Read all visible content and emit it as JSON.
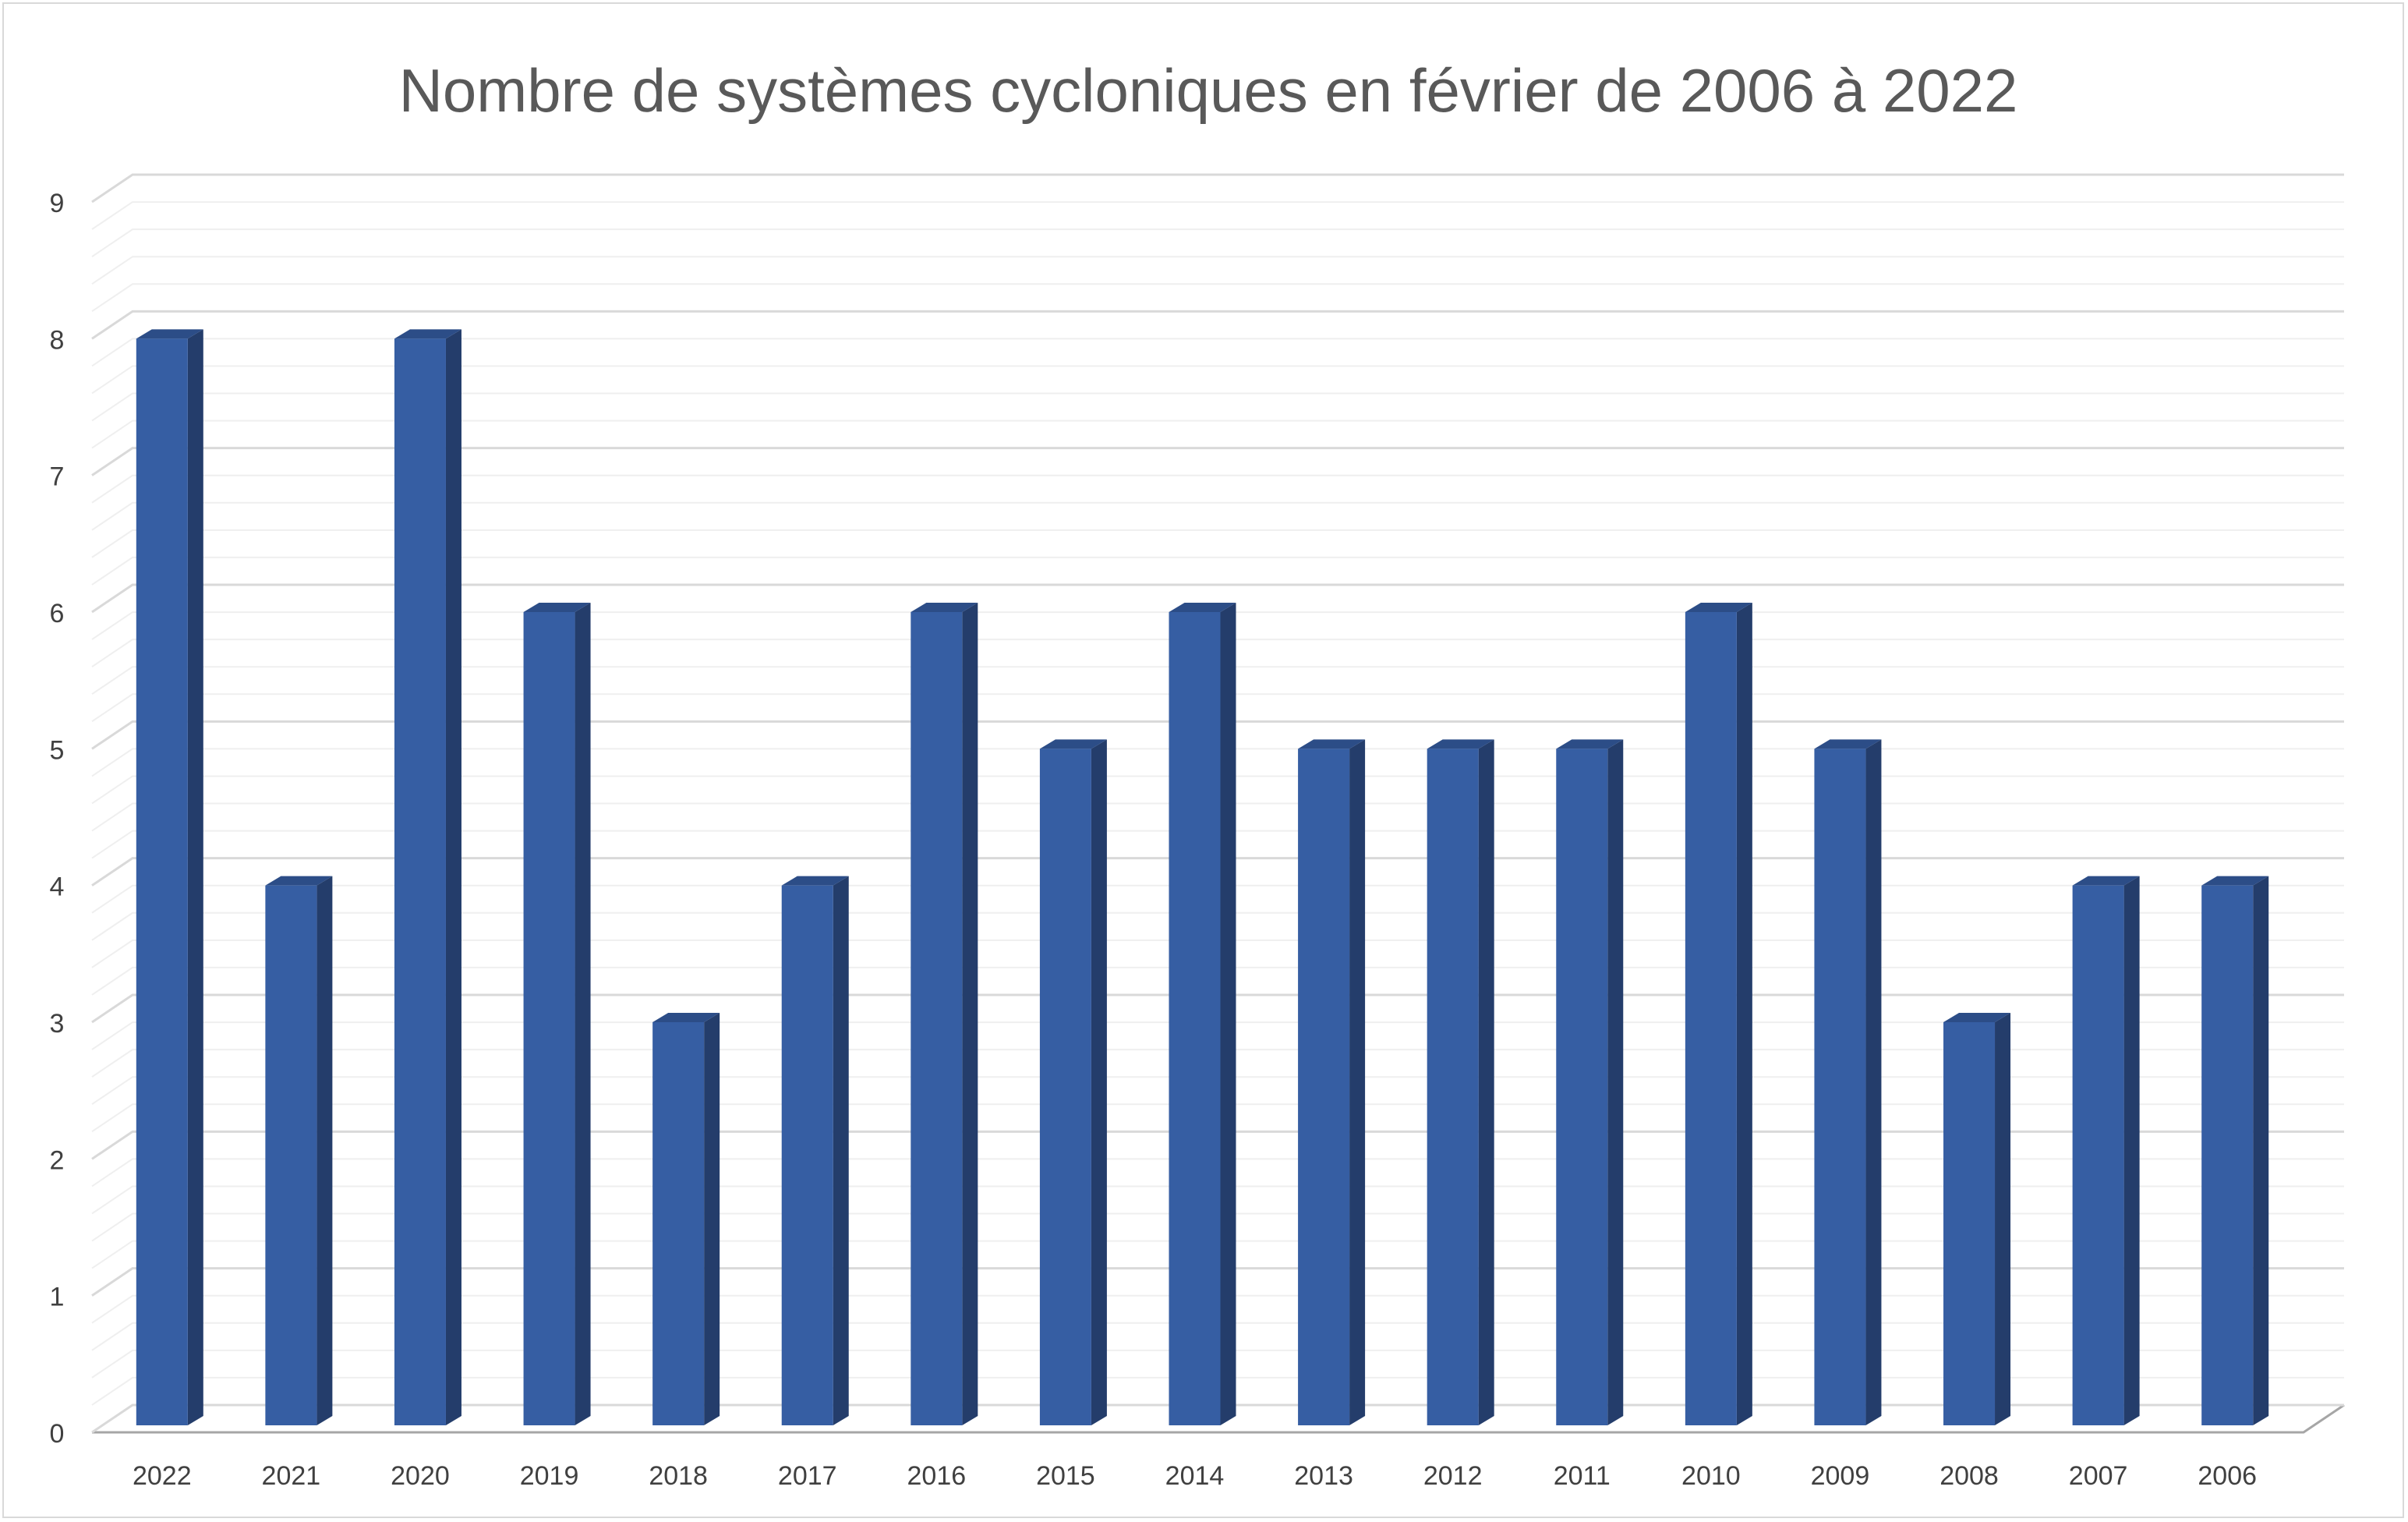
{
  "chart_data": {
    "type": "bar",
    "style": "3d-column",
    "title": "Nombre de systèmes cycloniques en février de 2006 à 2022",
    "xlabel": "",
    "ylabel": "",
    "categories": [
      "2022",
      "2021",
      "2020",
      "2019",
      "2018",
      "2017",
      "2016",
      "2015",
      "2014",
      "2013",
      "2012",
      "2011",
      "2010",
      "2009",
      "2008",
      "2007",
      "2006"
    ],
    "values": [
      8,
      4,
      8,
      6,
      3,
      4,
      6,
      5,
      6,
      5,
      5,
      5,
      6,
      5,
      3,
      4,
      4
    ],
    "ylim": [
      0,
      9
    ],
    "yticks": [
      "0",
      "1",
      "2",
      "3",
      "4",
      "5",
      "6",
      "7",
      "8",
      "9"
    ],
    "major_grid": true,
    "minor_grid": true,
    "legend": "none",
    "colors": {
      "bar_front": "#365ea3",
      "bar_side": "#243d6b",
      "bar_top": "#2c4d87",
      "major_grid": "#d9d9d9",
      "minor_grid": "#efefef",
      "axis": "#a6a6a6"
    }
  }
}
